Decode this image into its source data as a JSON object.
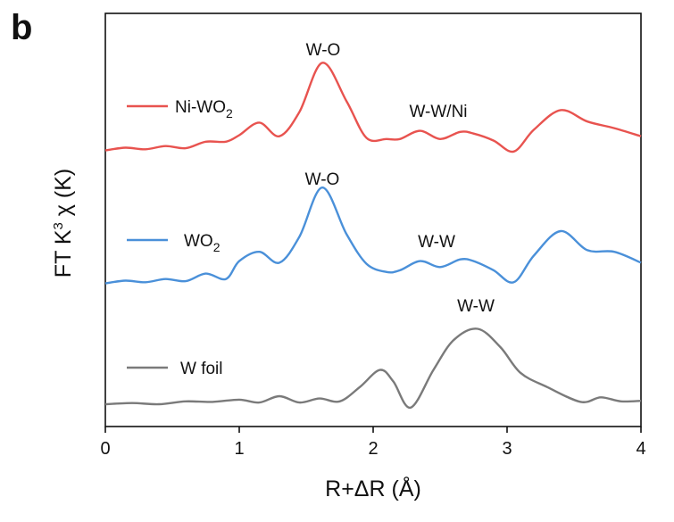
{
  "panel_label": "b",
  "chart_data": {
    "type": "line",
    "xlabel": "R+ΔR (Å)",
    "ylabel": "FT K³ χ (K)",
    "ylabel_parts": {
      "base": "FT K",
      "sup": "3",
      "rest": " χ (K)"
    },
    "xlim": [
      0,
      4
    ],
    "xticks": [
      0,
      1,
      2,
      3,
      4
    ],
    "xtick_labels": [
      "0",
      "1",
      "2",
      "3",
      "4"
    ],
    "y_ticks_shown": false,
    "legend_placement": "left, beside each curve",
    "series": [
      {
        "name": "Ni-WO2",
        "name_parts": {
          "base": "Ni-WO",
          "sub": "2"
        },
        "color": "#e8534f",
        "x": [
          0.0,
          0.15,
          0.3,
          0.45,
          0.6,
          0.75,
          0.9,
          1.0,
          1.15,
          1.3,
          1.45,
          1.62,
          1.8,
          1.95,
          2.1,
          2.2,
          2.35,
          2.5,
          2.65,
          2.75,
          2.9,
          3.05,
          3.2,
          3.4,
          3.6,
          3.8,
          4.0
        ],
        "y": [
          0.04,
          0.09,
          0.06,
          0.12,
          0.08,
          0.2,
          0.2,
          0.32,
          0.55,
          0.3,
          0.75,
          1.65,
          0.95,
          0.27,
          0.25,
          0.25,
          0.4,
          0.25,
          0.38,
          0.35,
          0.22,
          0.02,
          0.42,
          0.78,
          0.57,
          0.45,
          0.3
        ]
      },
      {
        "name": "WO2",
        "name_parts": {
          "base": "WO",
          "sub": "2"
        },
        "color": "#4a90d9",
        "x": [
          0.0,
          0.15,
          0.3,
          0.45,
          0.6,
          0.75,
          0.9,
          1.0,
          1.15,
          1.3,
          1.45,
          1.62,
          1.8,
          1.95,
          2.1,
          2.2,
          2.35,
          2.5,
          2.65,
          2.75,
          2.9,
          3.05,
          3.2,
          3.4,
          3.6,
          3.8,
          4.0
        ],
        "y": [
          0.04,
          0.09,
          0.06,
          0.12,
          0.08,
          0.22,
          0.12,
          0.45,
          0.62,
          0.42,
          0.9,
          1.8,
          0.95,
          0.4,
          0.25,
          0.28,
          0.45,
          0.34,
          0.48,
          0.45,
          0.28,
          0.06,
          0.55,
          1.0,
          0.65,
          0.62,
          0.42
        ]
      },
      {
        "name": "W foil",
        "color": "#7a7a7a",
        "x": [
          0.0,
          0.2,
          0.4,
          0.6,
          0.8,
          1.0,
          1.15,
          1.3,
          1.45,
          1.6,
          1.75,
          1.9,
          2.05,
          2.15,
          2.28,
          2.45,
          2.6,
          2.78,
          2.95,
          3.1,
          3.3,
          3.55,
          3.7,
          3.85,
          4.0
        ],
        "y": [
          0.0,
          0.02,
          0.0,
          0.05,
          0.04,
          0.08,
          0.03,
          0.14,
          0.03,
          0.1,
          0.05,
          0.3,
          0.6,
          0.4,
          -0.06,
          0.6,
          1.12,
          1.32,
          1.0,
          0.55,
          0.3,
          0.04,
          0.12,
          0.05,
          0.06
        ]
      }
    ],
    "annotations": [
      {
        "text": "W-O",
        "series": "Ni-WO2"
      },
      {
        "text": "W-W/Ni",
        "series": "Ni-WO2"
      },
      {
        "text": "W-O",
        "series": "WO2"
      },
      {
        "text": "W-W",
        "series": "WO2"
      },
      {
        "text": "W-W",
        "series": "W foil"
      }
    ]
  }
}
